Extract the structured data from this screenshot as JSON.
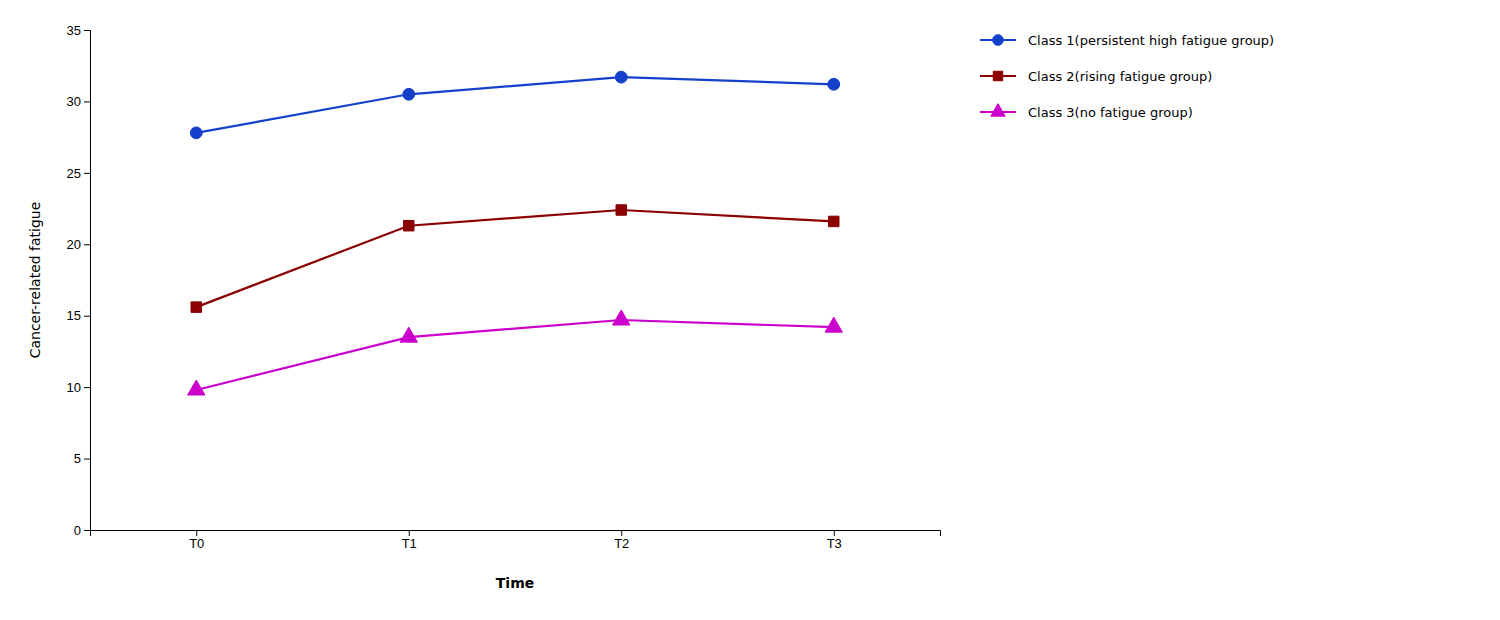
{
  "chart_data": {
    "type": "line",
    "categories": [
      "T0",
      "T1",
      "T2",
      "T3"
    ],
    "series": [
      {
        "name": "Class 1(persistent high fatigue group)",
        "color": "#1540cc",
        "marker": "circle",
        "values": [
          27.8,
          30.5,
          31.7,
          31.2
        ]
      },
      {
        "name": "Class 2(rising fatigue group)",
        "color": "#8b0000",
        "marker": "square",
        "values": [
          15.6,
          21.3,
          22.4,
          21.6
        ]
      },
      {
        "name": "Class 3(no fatigue group)",
        "color": "#cc00cc",
        "marker": "triangle",
        "values": [
          9.8,
          13.5,
          14.7,
          14.2
        ]
      }
    ],
    "x_label": "Time",
    "y_label": "Cancer-related fatigue",
    "ylim": [
      0,
      35
    ],
    "yticks": [
      0,
      5,
      10,
      15,
      20,
      25,
      30,
      35
    ],
    "grid": false,
    "legend": "upper right"
  }
}
